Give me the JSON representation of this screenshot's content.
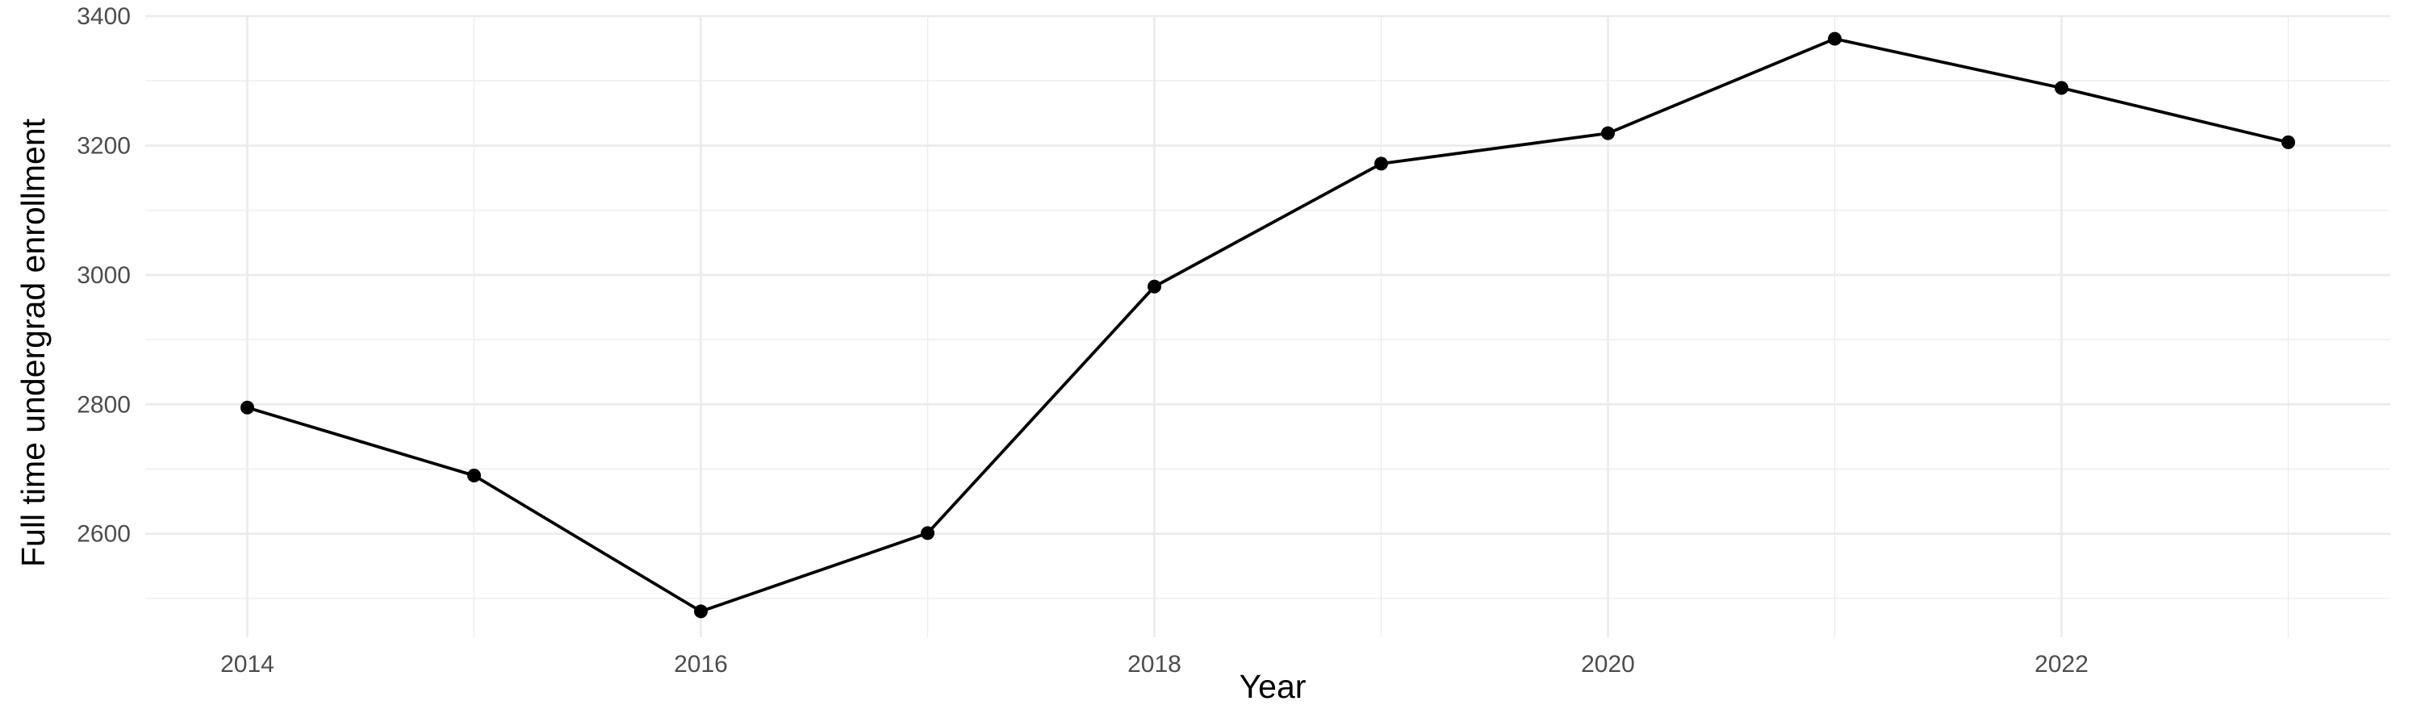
{
  "chart_data": {
    "type": "line",
    "title": "",
    "xlabel": "Year",
    "ylabel": "Full time undergrad enrollment",
    "x": [
      2014,
      2015,
      2016,
      2017,
      2018,
      2019,
      2020,
      2021,
      2022,
      2023
    ],
    "series": [
      {
        "values": [
          2795,
          2690,
          2480,
          2601,
          2982,
          3172,
          3219,
          3365,
          3289,
          3205
        ]
      }
    ],
    "xlim": [
      2013.55,
      2023.45
    ],
    "ylim": [
      2440,
      3400
    ],
    "x_ticks": [
      2014,
      2016,
      2018,
      2020,
      2022
    ],
    "x_tick_labels": [
      "2014",
      "2016",
      "2018",
      "2020",
      "2022"
    ],
    "y_ticks": [
      2600,
      2800,
      3000,
      3200,
      3400
    ],
    "y_tick_labels": [
      "2600",
      "2800",
      "3000",
      "3200",
      "3400"
    ],
    "grid": true,
    "legend": "none",
    "colors": {
      "line": "#000000",
      "point": "#000000",
      "grid": "#ebebeb",
      "background": "#ffffff"
    }
  }
}
